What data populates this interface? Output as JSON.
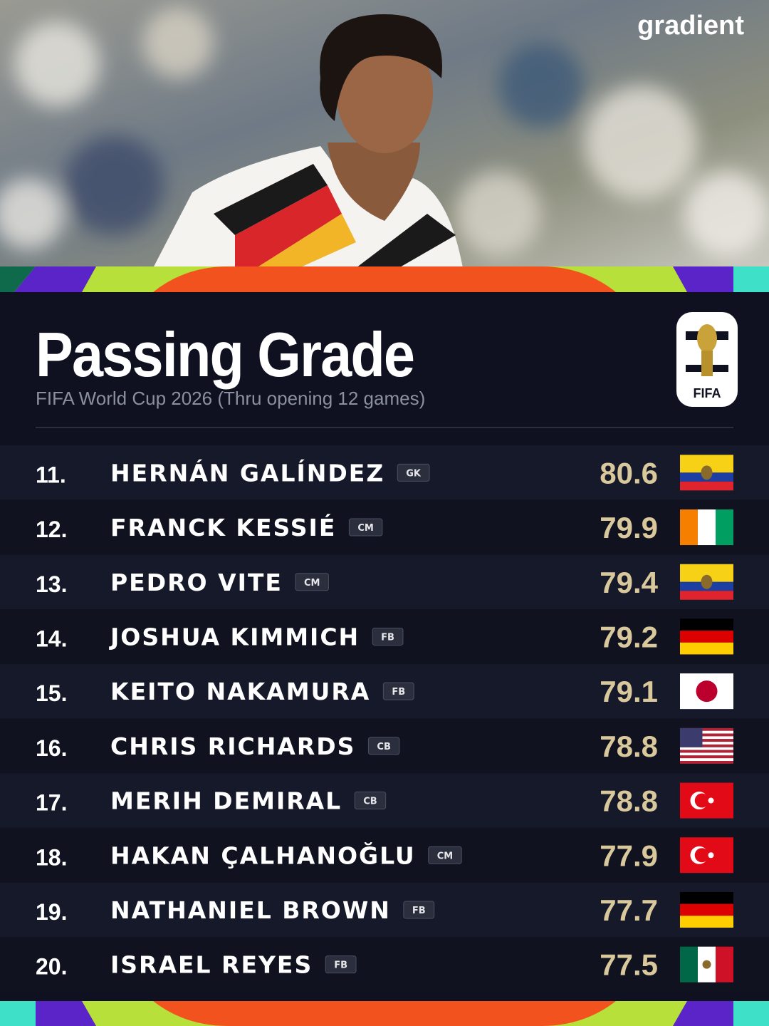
{
  "brand": "gradient",
  "header": {
    "title": "Passing Grade",
    "subtitle": "FIFA World Cup 2026 (Thru opening 12 games)"
  },
  "logo": "FIFA",
  "rows": [
    {
      "rank": "11.",
      "name": "HERNÁN GALÍNDEZ",
      "position": "GK",
      "grade": 80.6
    },
    {
      "rank": "12.",
      "name": "FRANCK KESSIÉ",
      "position": "CM",
      "grade": 79.9
    },
    {
      "rank": "13.",
      "name": "PEDRO VITE",
      "position": "CM",
      "grade": 79.4
    },
    {
      "rank": "14.",
      "name": "JOSHUA KIMMICH",
      "position": "FB",
      "grade": 79.2
    },
    {
      "rank": "15.",
      "name": "KEITO NAKAMURA",
      "position": "FB",
      "grade": 79.1
    },
    {
      "rank": "16.",
      "name": "CHRIS RICHARDS",
      "position": "CB",
      "grade": 78.8
    },
    {
      "rank": "17.",
      "name": "MERIH DEMIRAL",
      "position": "CB",
      "grade": 78.8
    },
    {
      "rank": "18.",
      "name": "HAKAN ÇALHANOĞLU",
      "position": "CM",
      "grade": 77.9
    },
    {
      "rank": "19.",
      "name": "NATHANIEL BROWN",
      "position": "FB",
      "grade": 77.7
    },
    {
      "rank": "20.",
      "name": "ISRAEL REYES",
      "position": "FB",
      "grade": 77.5
    }
  ]
}
